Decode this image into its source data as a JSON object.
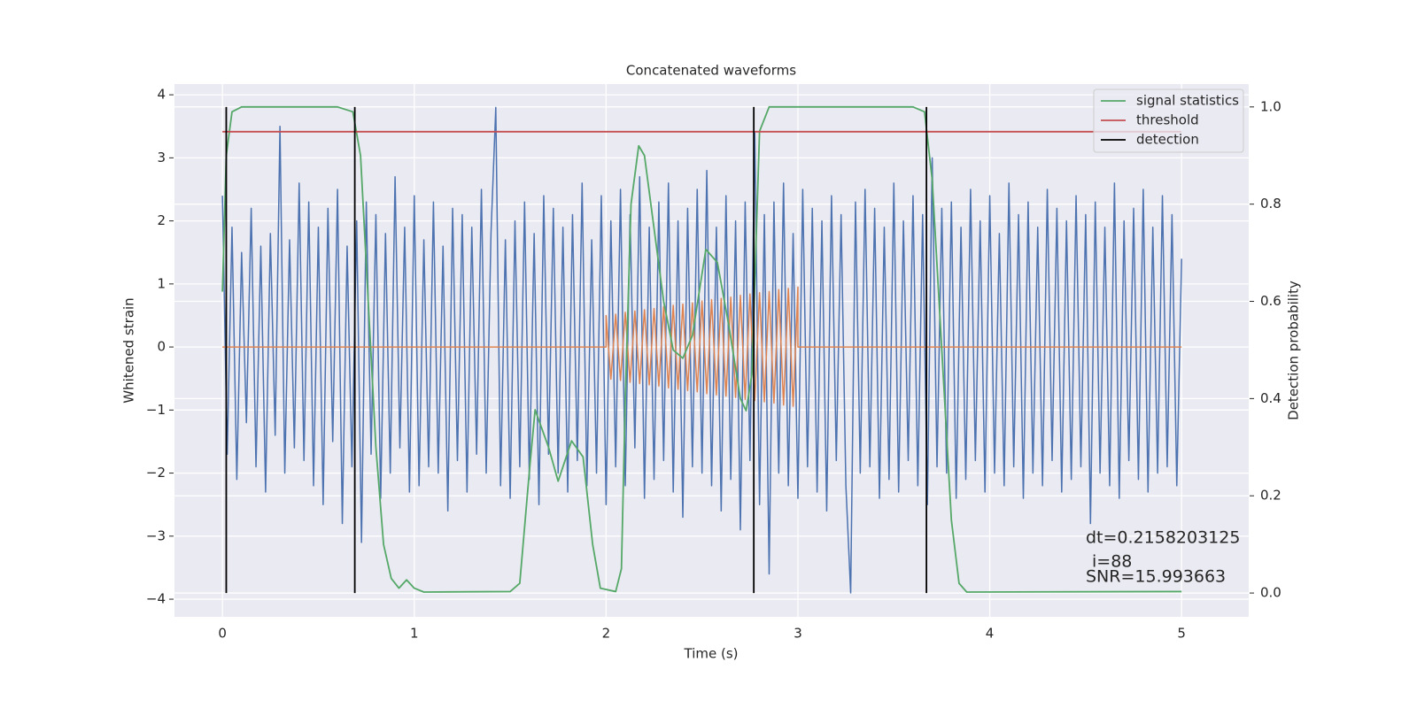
{
  "chart_data": {
    "type": "line",
    "title": "Concatenated waveforms",
    "x_label": "Time (s)",
    "y_label": "Whitened strain",
    "y2_label": "Detection probability",
    "xlim": [
      -0.25,
      5.35
    ],
    "xticks": [
      0,
      1,
      2,
      3,
      4,
      5
    ],
    "ylim": [
      -4.28,
      4.17
    ],
    "yticks": [
      {
        "value": -4,
        "label": "−4"
      },
      {
        "value": -3,
        "label": "−3"
      },
      {
        "value": -2,
        "label": "−2"
      },
      {
        "value": -1,
        "label": "−1"
      },
      0,
      1,
      2,
      3,
      4
    ],
    "y2lim": [
      -0.049,
      1.047
    ],
    "y2ticks": [
      {
        "value": 0,
        "label": "0.0"
      },
      0.2,
      0.4,
      0.6,
      0.8,
      {
        "value": 1,
        "label": "1.0"
      }
    ],
    "grid": true,
    "legend": "upper right",
    "annotations": [
      "dt=0.2158203125",
      "i=88",
      "SNR=15.993663"
    ],
    "series": [
      {
        "color": "#4c72b0",
        "x": [
          0,
          0.025,
          0.05,
          0.075,
          0.1,
          0.125,
          0.15,
          0.175,
          0.2,
          0.225,
          0.25,
          0.275,
          0.3,
          0.325,
          0.35,
          0.375,
          0.4,
          0.425,
          0.45,
          0.475,
          0.5,
          0.525,
          0.55,
          0.575,
          0.6,
          0.625,
          0.65,
          0.675,
          0.7,
          0.725,
          0.75,
          0.775,
          0.8,
          0.825,
          0.85,
          0.875,
          0.9,
          0.925,
          0.95,
          0.975,
          1,
          1.025,
          1.05,
          1.075,
          1.1,
          1.125,
          1.15,
          1.175,
          1.2,
          1.225,
          1.25,
          1.275,
          1.3,
          1.325,
          1.35,
          1.375,
          1.4,
          1.425,
          1.45,
          1.475,
          1.5,
          1.525,
          1.55,
          1.575,
          1.6,
          1.625,
          1.65,
          1.675,
          1.7,
          1.725,
          1.75,
          1.775,
          1.8,
          1.825,
          1.85,
          1.875,
          1.9,
          1.925,
          1.95,
          1.975,
          2,
          2.025,
          2.05,
          2.075,
          2.1,
          2.125,
          2.15,
          2.175,
          2.2,
          2.225,
          2.25,
          2.275,
          2.3,
          2.325,
          2.35,
          2.375,
          2.4,
          2.425,
          2.45,
          2.475,
          2.5,
          2.525,
          2.55,
          2.575,
          2.6,
          2.625,
          2.65,
          2.675,
          2.7,
          2.725,
          2.75,
          2.775,
          2.8,
          2.825,
          2.85,
          2.875,
          2.9,
          2.925,
          2.95,
          2.975,
          3,
          3.025,
          3.05,
          3.075,
          3.1,
          3.125,
          3.15,
          3.175,
          3.2,
          3.225,
          3.25,
          3.275,
          3.3,
          3.325,
          3.35,
          3.375,
          3.4,
          3.425,
          3.45,
          3.475,
          3.5,
          3.525,
          3.55,
          3.575,
          3.6,
          3.625,
          3.65,
          3.675,
          3.7,
          3.725,
          3.75,
          3.775,
          3.8,
          3.825,
          3.85,
          3.875,
          3.9,
          3.925,
          3.95,
          3.975,
          4,
          4.025,
          4.05,
          4.075,
          4.1,
          4.125,
          4.15,
          4.175,
          4.2,
          4.225,
          4.25,
          4.275,
          4.3,
          4.325,
          4.35,
          4.375,
          4.4,
          4.425,
          4.45,
          4.475,
          4.5,
          4.525,
          4.55,
          4.575,
          4.6,
          4.625,
          4.65,
          4.675,
          4.7,
          4.725,
          4.75,
          4.775,
          4.8,
          4.825,
          4.85,
          4.875,
          4.9,
          4.925,
          4.95,
          4.975,
          5
        ],
        "values": [
          2.4,
          -1.7,
          1.9,
          -2.1,
          1.5,
          -1.2,
          2.2,
          -1.9,
          1.6,
          -2.3,
          1.8,
          -1.4,
          3.5,
          -2.0,
          1.7,
          -1.6,
          2.6,
          -1.8,
          2.3,
          -2.2,
          1.9,
          -2.5,
          2.2,
          -1.5,
          2.5,
          -2.8,
          1.6,
          -1.9,
          2.0,
          -3.1,
          2.3,
          -1.7,
          2.1,
          -2.4,
          1.8,
          -2.0,
          2.7,
          -1.6,
          1.9,
          -2.3,
          2.4,
          -2.2,
          1.7,
          -1.9,
          2.3,
          -2.0,
          1.6,
          -2.6,
          2.2,
          -1.8,
          2.1,
          -2.3,
          1.9,
          -1.7,
          2.5,
          -2.0,
          1.8,
          3.8,
          -2.2,
          1.7,
          -2.4,
          2.0,
          -1.9,
          2.3,
          -2.1,
          1.8,
          -2.5,
          2.4,
          -1.7,
          2.2,
          -2.0,
          1.9,
          -2.3,
          2.1,
          -1.8,
          2.6,
          -2.2,
          1.7,
          -2.0,
          2.4,
          -2.5,
          2.0,
          -1.9,
          2.5,
          -2.2,
          2.1,
          -1.6,
          2.7,
          -2.4,
          1.9,
          -2.1,
          2.3,
          -1.8,
          2.6,
          -2.3,
          2.0,
          -2.7,
          2.2,
          -1.9,
          2.5,
          -2.0,
          2.8,
          -2.2,
          1.9,
          -2.6,
          2.4,
          -2.1,
          2.0,
          -2.9,
          2.3,
          -1.8,
          3.4,
          -2.5,
          2.1,
          -3.6,
          2.3,
          -2.0,
          2.6,
          -2.2,
          1.8,
          -2.4,
          2.5,
          -1.9,
          2.2,
          -2.3,
          2.0,
          -2.6,
          2.4,
          -1.8,
          2.1,
          -2.2,
          -3.9,
          2.3,
          -2.0,
          2.5,
          -1.9,
          2.2,
          -2.4,
          1.9,
          -2.1,
          2.6,
          -2.3,
          2.0,
          -1.8,
          2.4,
          -2.2,
          2.1,
          -2.5,
          3.0,
          -1.9,
          2.2,
          -2.0,
          2.3,
          -2.4,
          1.9,
          -2.1,
          2.5,
          -1.8,
          2.0,
          -2.3,
          2.4,
          -2.0,
          1.8,
          -2.2,
          2.6,
          -1.9,
          2.1,
          -2.4,
          2.3,
          -2.0,
          1.9,
          -2.2,
          2.5,
          -1.8,
          2.2,
          -2.3,
          2.0,
          -2.1,
          2.4,
          -1.9,
          2.1,
          -2.8,
          2.3,
          -2.0,
          1.9,
          -2.2,
          2.6,
          -2.4,
          2.0,
          -1.8,
          2.2,
          -2.1,
          2.5,
          -2.3,
          1.9,
          -2.0,
          2.4,
          -1.9,
          2.1,
          -2.2,
          1.4
        ]
      },
      {
        "color": "#dd8452",
        "x": [
          0,
          2,
          2,
          2.025,
          2.05,
          2.075,
          2.1,
          2.125,
          2.15,
          2.175,
          2.2,
          2.225,
          2.25,
          2.275,
          2.3,
          2.325,
          2.35,
          2.375,
          2.4,
          2.425,
          2.45,
          2.475,
          2.5,
          2.525,
          2.55,
          2.575,
          2.6,
          2.625,
          2.65,
          2.675,
          2.7,
          2.725,
          2.75,
          2.775,
          2.8,
          2.825,
          2.85,
          2.875,
          2.9,
          2.925,
          2.95,
          2.975,
          3,
          3,
          5
        ],
        "values": [
          0,
          0,
          0.5,
          -0.51,
          0.52,
          -0.53,
          0.55,
          -0.56,
          0.57,
          -0.58,
          0.59,
          -0.6,
          0.61,
          -0.62,
          0.64,
          -0.65,
          0.66,
          -0.67,
          0.68,
          -0.69,
          0.7,
          -0.71,
          0.73,
          -0.74,
          0.75,
          -0.76,
          0.77,
          -0.78,
          0.79,
          -0.8,
          0.82,
          -0.83,
          0.84,
          -0.85,
          0.86,
          -0.87,
          0.88,
          -0.89,
          0.91,
          -0.92,
          0.93,
          -0.94,
          0.95,
          0,
          0
        ]
      },
      {
        "name": "signal statistics",
        "color": "#55a868",
        "axis": "y2",
        "x": [
          0,
          0.02,
          0.05,
          0.1,
          0.6,
          0.68,
          0.72,
          0.76,
          0.8,
          0.84,
          0.88,
          0.92,
          0.96,
          1.0,
          1.05,
          1.5,
          1.55,
          1.6,
          1.63,
          1.7,
          1.75,
          1.82,
          1.88,
          1.93,
          1.97,
          2.05,
          2.08,
          2.1,
          2.13,
          2.17,
          2.2,
          2.25,
          2.3,
          2.35,
          2.4,
          2.45,
          2.52,
          2.58,
          2.64,
          2.7,
          2.73,
          2.76,
          2.78,
          2.8,
          2.85,
          3.6,
          3.66,
          3.7,
          3.75,
          3.8,
          3.84,
          3.88,
          5
        ],
        "values": [
          0.62,
          0.9,
          0.99,
          1.0,
          1.0,
          0.99,
          0.9,
          0.6,
          0.3,
          0.1,
          0.03,
          0.01,
          0.027,
          0.01,
          0.002,
          0.003,
          0.02,
          0.25,
          0.377,
          0.3,
          0.23,
          0.313,
          0.28,
          0.1,
          0.01,
          0.003,
          0.05,
          0.4,
          0.8,
          0.92,
          0.9,
          0.75,
          0.6,
          0.5,
          0.483,
          0.53,
          0.707,
          0.68,
          0.55,
          0.4,
          0.375,
          0.45,
          0.7,
          0.95,
          1.0,
          1.0,
          0.99,
          0.85,
          0.5,
          0.15,
          0.02,
          0.002,
          0.003
        ]
      },
      {
        "name": "threshold",
        "color": "#c44e52",
        "axis": "y2",
        "x": [
          0,
          5
        ],
        "values": [
          0.949,
          0.949
        ]
      },
      {
        "name": "detection",
        "color": "#000000",
        "axis": "y2",
        "x": [
          0.02,
          0.02,
          0.02,
          0.69,
          0.69,
          0.69,
          2.77,
          2.77,
          2.77,
          3.67,
          3.67,
          3.67
        ],
        "values": [
          0,
          1,
          null,
          0,
          1,
          null,
          0,
          1,
          null,
          0,
          1,
          null
        ]
      }
    ]
  }
}
